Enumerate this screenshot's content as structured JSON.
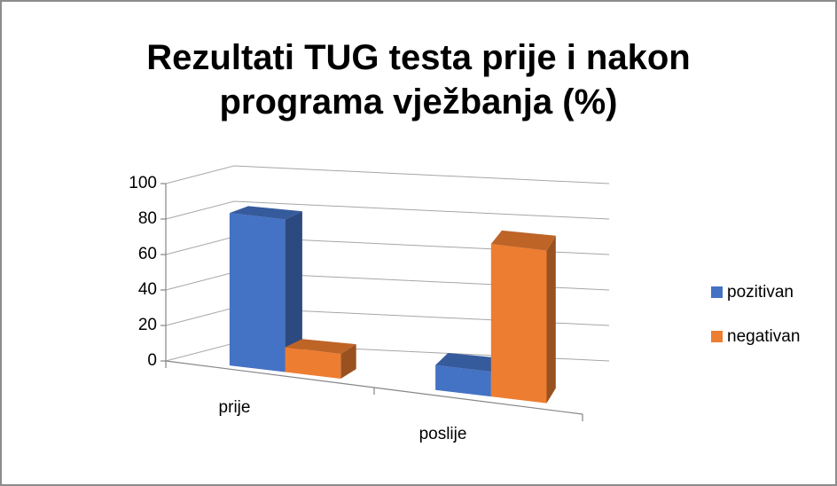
{
  "chart_data": {
    "type": "bar3d",
    "title": "Rezultati TUG testa prije i nakon programa vježbanja (%)",
    "categories": [
      "prije",
      "poslije"
    ],
    "series": [
      {
        "name": "pozitivan",
        "color": "#4472c4",
        "values": [
          86,
          14
        ]
      },
      {
        "name": "negativan",
        "color": "#ed7d31",
        "values": [
          14,
          86
        ]
      }
    ],
    "ylim": [
      0,
      100
    ],
    "yticks": [
      0,
      20,
      40,
      60,
      80,
      100
    ],
    "grid": true,
    "legend": "right"
  }
}
